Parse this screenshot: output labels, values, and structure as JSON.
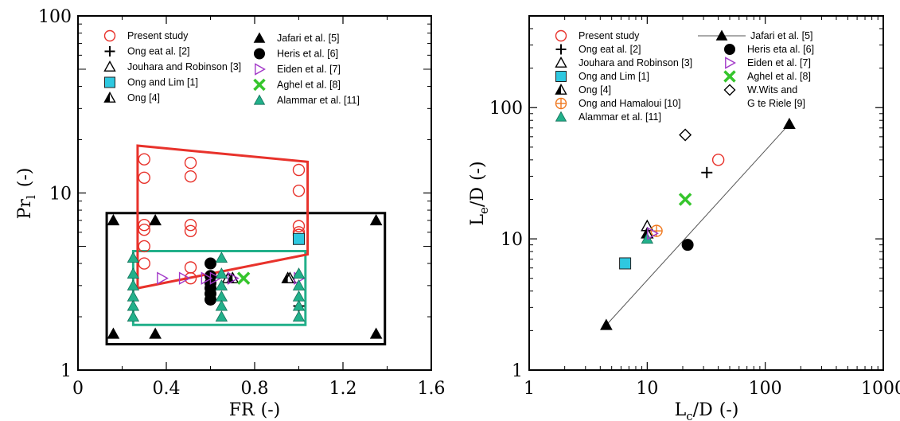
{
  "chart_data": [
    {
      "type": "scatter",
      "xscale": "linear",
      "yscale": "log",
      "xlim": [
        0,
        1.6
      ],
      "ylim": [
        1,
        100
      ],
      "x_ticks": [
        "0",
        "0.4",
        "0.8",
        "1.2",
        "1.6"
      ],
      "x_tick_values": [
        0,
        0.4,
        0.8,
        1.2,
        1.6
      ],
      "y_ticks": [
        "1",
        "10",
        "100"
      ],
      "y_tick_values": [
        1,
        10,
        100
      ],
      "xlabel": {
        "main": "FR",
        "unit": "(-)"
      },
      "ylabel": {
        "main": "Pr",
        "sub": "l",
        "unit": "(-)"
      },
      "grid": false,
      "legend_placement": "top (inside, two columns)",
      "legend": [
        {
          "label": "Present study",
          "marker": "circle-open",
          "color": "#e8322b",
          "col": 0
        },
        {
          "label": "Ong eat al. [2]",
          "marker": "plus",
          "color": "#000000",
          "col": 0
        },
        {
          "label": "Jouhara and Robinson [3]",
          "marker": "triangle-open",
          "color": "#000000",
          "col": 0
        },
        {
          "label": "Ong and Lim [1]",
          "marker": "square",
          "color": "#2ec8e0",
          "col": 0
        },
        {
          "label": "Ong [4]",
          "marker": "triangle-half",
          "color": "#000000",
          "col": 0
        },
        {
          "label": "Jafari et al. [5]",
          "marker": "triangle",
          "color": "#000000",
          "col": 1
        },
        {
          "label": "Heris et al. [6]",
          "marker": "circle",
          "color": "#000000",
          "col": 1
        },
        {
          "label": "Eiden et al. [7]",
          "marker": "triangle-right-open",
          "color": "#a238c8",
          "col": 1
        },
        {
          "label": "Aghel et al. [8]",
          "marker": "x",
          "color": "#35c52c",
          "col": 1
        },
        {
          "label": "Alammar et al. [11]",
          "marker": "triangle-teal",
          "color": "#22b08a",
          "col": 1
        }
      ],
      "series": [
        {
          "name": "Present study",
          "marker": "circle-open",
          "color": "#e8322b",
          "points": [
            [
              0.3,
              15.5
            ],
            [
              0.3,
              12.2
            ],
            [
              0.3,
              6.6
            ],
            [
              0.3,
              6.2
            ],
            [
              0.3,
              5.0
            ],
            [
              0.3,
              4.0
            ],
            [
              0.51,
              14.8
            ],
            [
              0.51,
              12.4
            ],
            [
              0.51,
              6.6
            ],
            [
              0.51,
              6.1
            ],
            [
              0.51,
              3.8
            ],
            [
              0.51,
              3.3
            ],
            [
              1.0,
              13.5
            ],
            [
              1.0,
              10.3
            ],
            [
              1.0,
              6.5
            ],
            [
              1.0,
              6.0
            ],
            [
              1.0,
              5.8
            ]
          ]
        },
        {
          "name": "Ong eat al. [2]",
          "marker": "plus",
          "color": "#000000",
          "points": [
            [
              1.0,
              2.3
            ]
          ]
        },
        {
          "name": "Jouhara and Robinson [3]",
          "marker": "triangle-open",
          "color": "#000000",
          "points": [
            [
              0.68,
              3.3
            ],
            [
              0.96,
              3.3
            ]
          ]
        },
        {
          "name": "Ong and Lim [1]",
          "marker": "square",
          "color": "#2ec8e0",
          "points": [
            [
              1.0,
              5.5
            ]
          ]
        },
        {
          "name": "Ong [4]",
          "marker": "triangle-half",
          "color": "#000000",
          "points": [
            [
              0.7,
              3.3
            ],
            [
              0.95,
              3.3
            ]
          ]
        },
        {
          "name": "Jafari et al. [5]",
          "marker": "triangle",
          "color": "#000000",
          "points": [
            [
              0.16,
              7.0
            ],
            [
              0.35,
              7.0
            ],
            [
              1.35,
              7.0
            ],
            [
              0.16,
              1.6
            ],
            [
              0.35,
              1.6
            ],
            [
              1.35,
              1.6
            ]
          ]
        },
        {
          "name": "Heris et al. [6]",
          "marker": "circle",
          "color": "#000000",
          "points": [
            [
              0.6,
              4.0
            ],
            [
              0.6,
              3.4
            ],
            [
              0.6,
              3.1
            ],
            [
              0.6,
              2.9
            ],
            [
              0.6,
              2.7
            ],
            [
              0.6,
              2.5
            ]
          ]
        },
        {
          "name": "Eiden et al. [7]",
          "marker": "triangle-right-open",
          "color": "#a238c8",
          "points": [
            [
              0.38,
              3.3
            ],
            [
              0.48,
              3.3
            ],
            [
              0.58,
              3.3
            ],
            [
              0.62,
              3.3
            ],
            [
              0.7,
              3.3
            ],
            [
              1.0,
              3.3
            ]
          ]
        },
        {
          "name": "Aghel et al. [8]",
          "marker": "x",
          "color": "#35c52c",
          "points": [
            [
              0.75,
              3.3
            ]
          ]
        },
        {
          "name": "Alammar et al. [11]",
          "marker": "triangle-teal",
          "color": "#22b08a",
          "points": [
            [
              0.25,
              4.3
            ],
            [
              0.25,
              3.5
            ],
            [
              0.25,
              3.0
            ],
            [
              0.25,
              2.6
            ],
            [
              0.25,
              2.3
            ],
            [
              0.25,
              2.0
            ],
            [
              0.65,
              4.3
            ],
            [
              0.65,
              3.5
            ],
            [
              0.65,
              3.0
            ],
            [
              0.65,
              2.6
            ],
            [
              0.65,
              2.3
            ],
            [
              0.65,
              2.0
            ],
            [
              1.0,
              3.5
            ],
            [
              1.0,
              3.0
            ],
            [
              1.0,
              2.6
            ],
            [
              1.0,
              2.3
            ],
            [
              1.0,
              2.0
            ]
          ]
        }
      ],
      "regions": [
        {
          "color": "#000000",
          "polygon": [
            [
              0.13,
              7.7
            ],
            [
              1.39,
              7.7
            ],
            [
              1.39,
              1.4
            ],
            [
              0.13,
              1.4
            ]
          ]
        },
        {
          "color": "#22b08a",
          "polygon": [
            [
              0.25,
              4.7
            ],
            [
              1.03,
              4.7
            ],
            [
              1.03,
              1.8
            ],
            [
              0.25,
              1.8
            ]
          ]
        },
        {
          "color": "#e8322b",
          "polygon": [
            [
              0.27,
              18.5
            ],
            [
              1.04,
              15.0
            ],
            [
              1.04,
              4.5
            ],
            [
              0.27,
              2.9
            ]
          ]
        }
      ]
    },
    {
      "type": "scatter",
      "xscale": "log",
      "yscale": "log",
      "xlim": [
        1,
        1000
      ],
      "ylim": [
        1,
        500
      ],
      "x_ticks": [
        "1",
        "10",
        "100",
        "1000"
      ],
      "x_tick_values": [
        1,
        10,
        100,
        1000
      ],
      "y_ticks": [
        "1",
        "10",
        "100"
      ],
      "y_tick_values": [
        1,
        10,
        100
      ],
      "xlabel": {
        "main": "L",
        "sub": "c",
        "tail": "/D",
        "unit": "(-)"
      },
      "ylabel": {
        "main": "L",
        "sub": "e",
        "tail": "/D",
        "unit": "(-)"
      },
      "grid": false,
      "legend_placement": "top (inside, two columns)",
      "legend": [
        {
          "label": "Present study",
          "marker": "circle-open",
          "color": "#e8322b",
          "col": 0
        },
        {
          "label": "Ong eat al. [2]",
          "marker": "plus",
          "color": "#000000",
          "col": 0
        },
        {
          "label": "Jouhara and Robinson [3]",
          "marker": "triangle-open",
          "color": "#000000",
          "col": 0
        },
        {
          "label": "Ong and Lim [1]",
          "marker": "square",
          "color": "#2ec8e0",
          "col": 0
        },
        {
          "label": "Ong [4]",
          "marker": "triangle-half",
          "color": "#000000",
          "col": 0
        },
        {
          "label": "Ong and Hamaloui [10]",
          "marker": "circle-plus",
          "color": "#f0781e",
          "col": 0
        },
        {
          "label": "Alammar et al. [11]",
          "marker": "triangle-teal",
          "color": "#22b08a",
          "col": 0
        },
        {
          "label": "Jafari et al. [5]",
          "marker": "triangle-line",
          "color": "#000000",
          "col": 1
        },
        {
          "label": "Heris eta al. [6]",
          "marker": "circle",
          "color": "#000000",
          "col": 1
        },
        {
          "label": "Eiden et al. [7]",
          "marker": "triangle-right-open",
          "color": "#a238c8",
          "col": 1
        },
        {
          "label": "Aghel et al. [8]",
          "marker": "x",
          "color": "#35c52c",
          "col": 1
        },
        {
          "label": "W.Wits and",
          "label2": "G te Riele [9]",
          "marker": "diamond-open",
          "color": "#000000",
          "col": 1
        }
      ],
      "series": [
        {
          "name": "Present study",
          "marker": "circle-open",
          "color": "#e8322b",
          "points": [
            [
              40,
              40
            ]
          ]
        },
        {
          "name": "Ong eat al. [2]",
          "marker": "plus",
          "color": "#000000",
          "points": [
            [
              32,
              32
            ]
          ]
        },
        {
          "name": "Jouhara and Robinson [3]",
          "marker": "triangle-open",
          "color": "#000000",
          "points": [
            [
              10,
              12.5
            ]
          ]
        },
        {
          "name": "Ong and Lim [1]",
          "marker": "square",
          "color": "#2ec8e0",
          "points": [
            [
              6.5,
              6.5
            ]
          ]
        },
        {
          "name": "Ong [4]",
          "marker": "triangle-half",
          "color": "#000000",
          "points": [
            [
              10,
              11
            ]
          ]
        },
        {
          "name": "Ong and Hamaloui [10]",
          "marker": "circle-plus",
          "color": "#f0781e",
          "points": [
            [
              12,
              11.5
            ]
          ]
        },
        {
          "name": "Alammar et al. [11]",
          "marker": "triangle-teal",
          "color": "#22b08a",
          "points": [
            [
              10,
              10
            ]
          ]
        },
        {
          "name": "Jafari et al. [5]",
          "marker": "triangle",
          "color": "#000000",
          "points": [
            [
              4.5,
              2.2
            ],
            [
              160,
              75
            ]
          ]
        },
        {
          "name": "Heris eta al. [6]",
          "marker": "circle",
          "color": "#000000",
          "points": [
            [
              22,
              9
            ]
          ]
        },
        {
          "name": "Eiden et al. [7]",
          "marker": "triangle-right-open",
          "color": "#a238c8",
          "points": [
            [
              11,
              11
            ]
          ]
        },
        {
          "name": "Aghel et al. [8]",
          "marker": "x",
          "color": "#35c52c",
          "points": [
            [
              21,
              20
            ]
          ]
        },
        {
          "name": "W.Wits and G te Riele [9]",
          "marker": "diamond-open",
          "color": "#000000",
          "points": [
            [
              21,
              62
            ]
          ]
        }
      ],
      "lines": [
        {
          "name": "Jafari et al. [5]",
          "color": "#555555",
          "points": [
            [
              4.5,
              2.2
            ],
            [
              160,
              75
            ]
          ]
        }
      ]
    }
  ]
}
